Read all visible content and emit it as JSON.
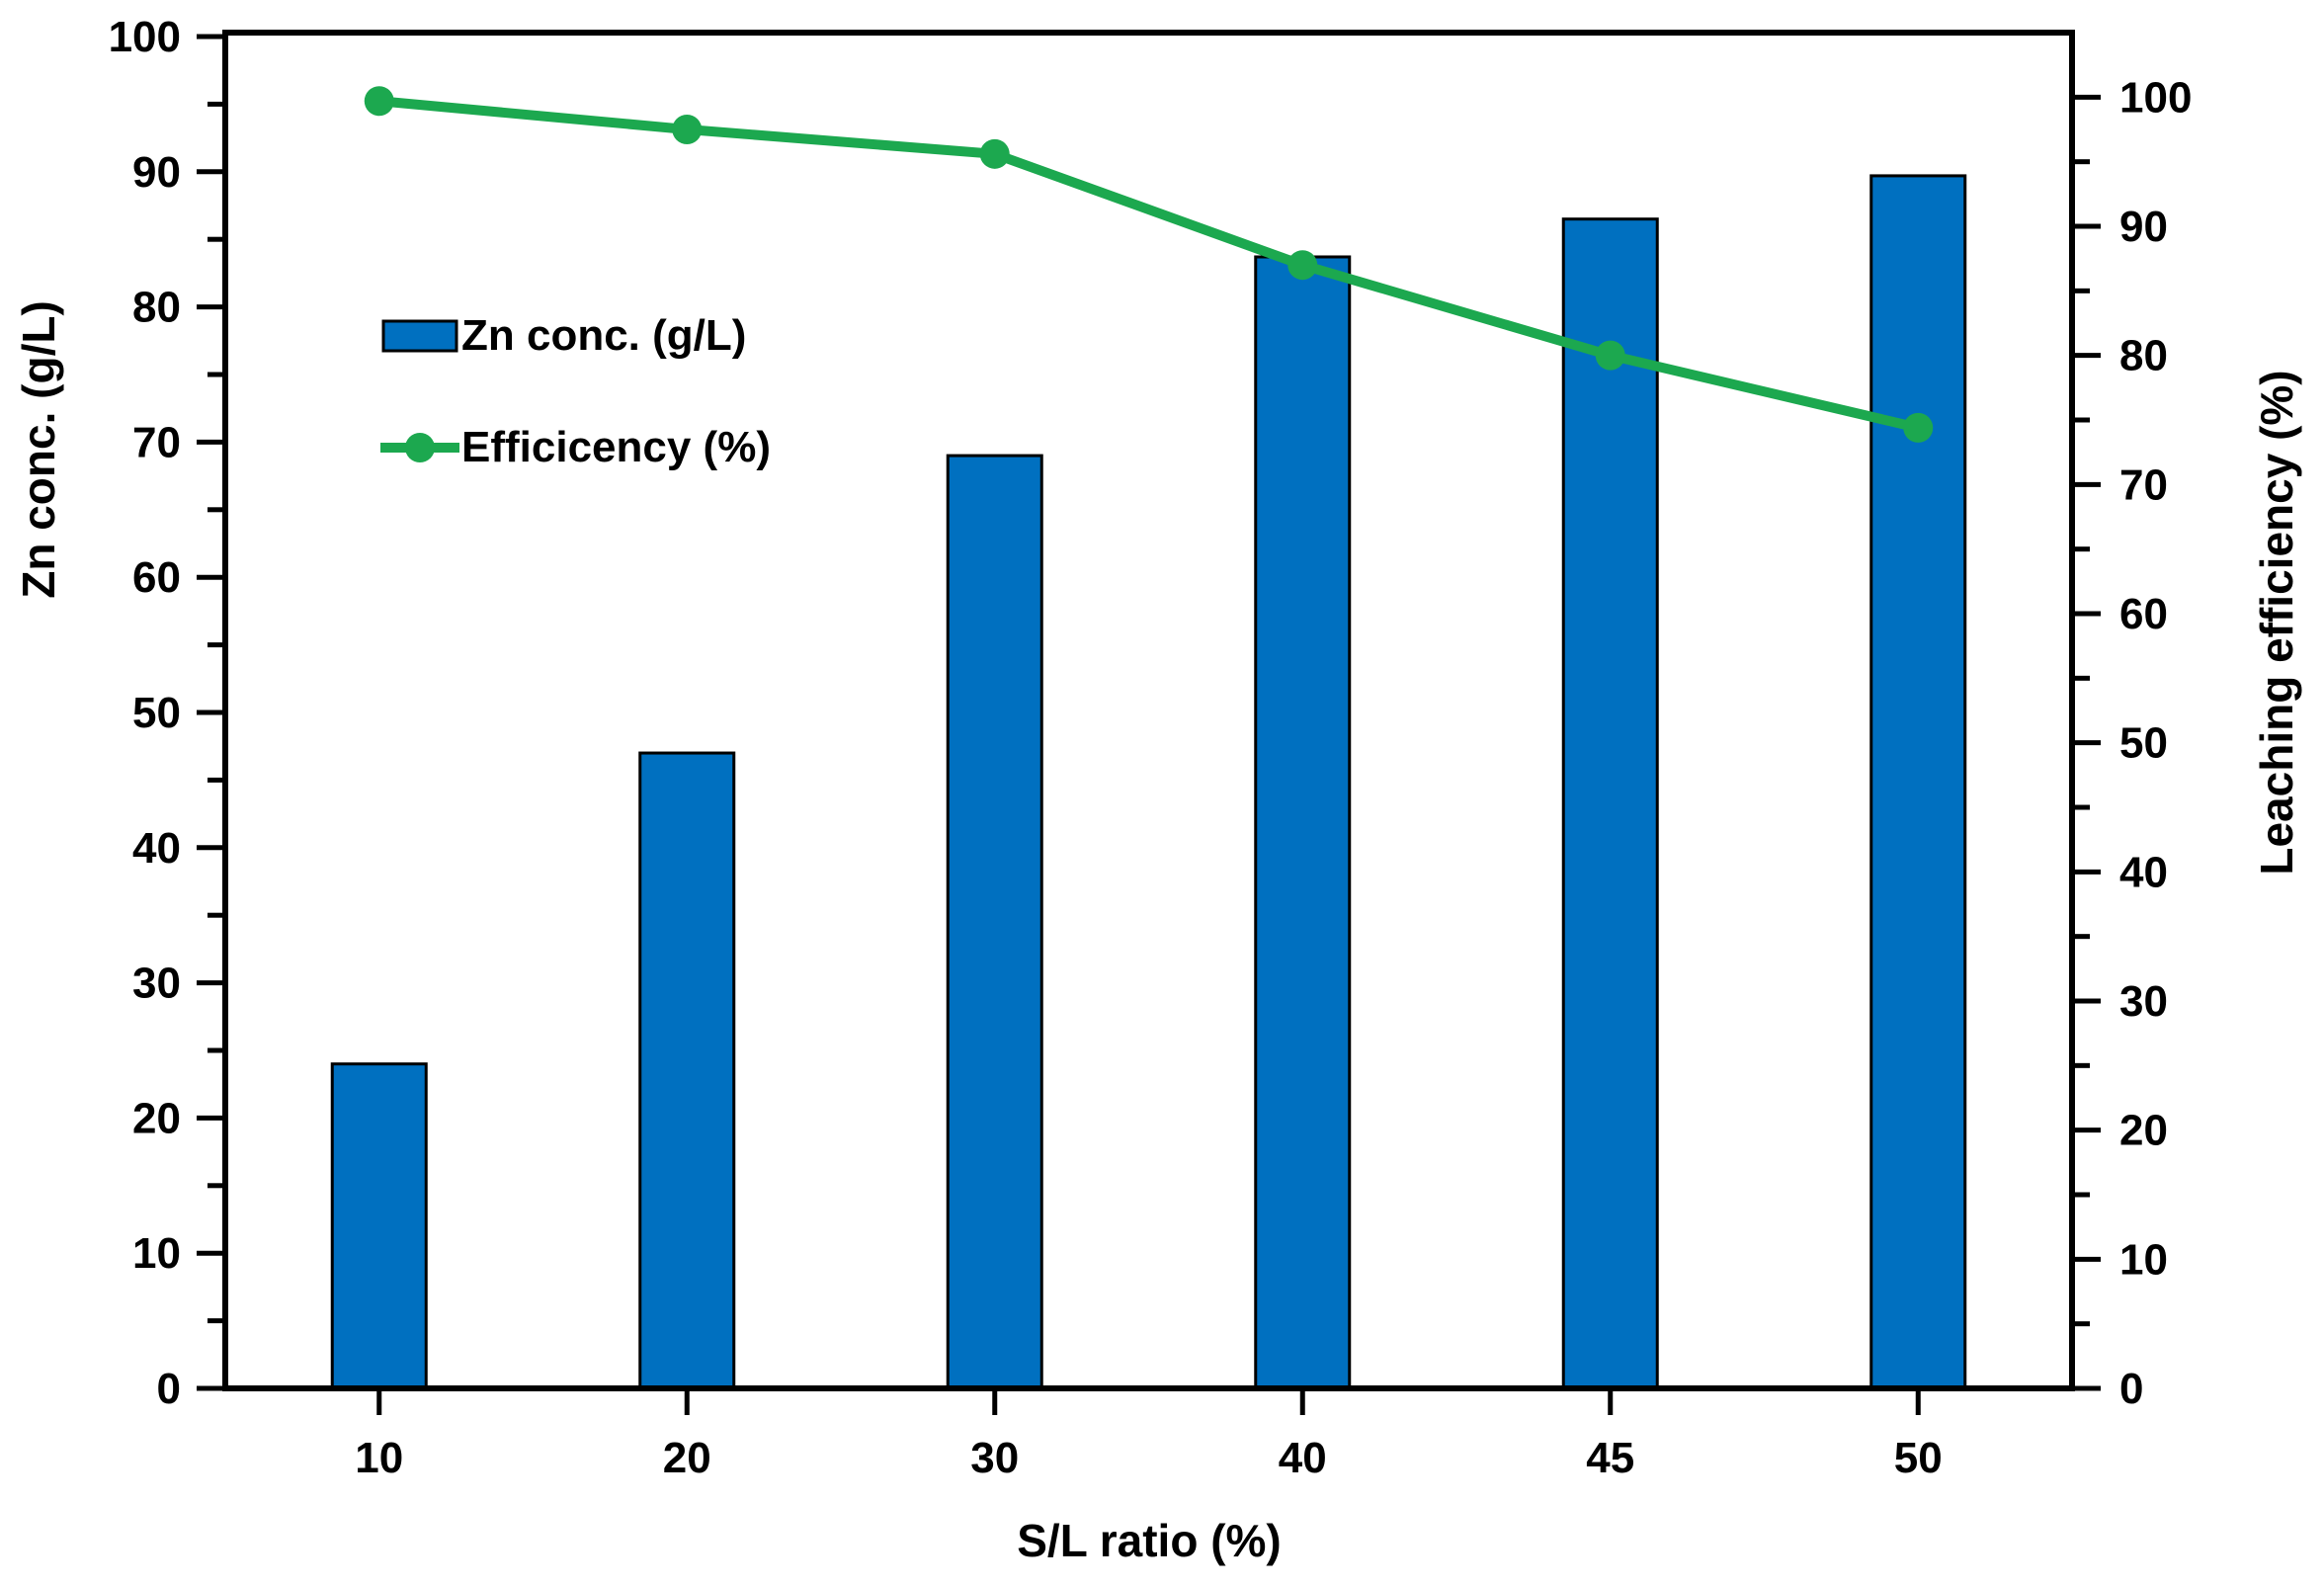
{
  "chart_data": {
    "type": "bar",
    "subtype": "combo-bar-line-dual-axis",
    "categories": [
      "10",
      "20",
      "30",
      "40",
      "45",
      "50"
    ],
    "series": [
      {
        "name": "Zn conc. (g/L)",
        "type": "bar",
        "axis": "left",
        "color": "#0070C0",
        "outline_color": "#000000",
        "values": [
          24,
          47,
          69,
          83.7,
          86.5,
          89.7
        ]
      },
      {
        "name": "Efficicency (%)",
        "type": "line",
        "axis": "right",
        "color": "#1CA84F",
        "marker": "circle",
        "values": [
          99.7,
          97.5,
          95.6,
          87,
          80,
          74.4
        ]
      }
    ],
    "title": "",
    "xlabel": "S/L ratio (%)",
    "ylabel_left": "Zn conc. (g/L)",
    "ylabel_right": "Leaching efficiency (%)",
    "left_axis": {
      "min": 0,
      "max": 100,
      "major_step": 10,
      "minor_step": 5,
      "tick_labels": [
        "0",
        "10",
        "20",
        "30",
        "40",
        "50",
        "60",
        "70",
        "80",
        "90",
        "100"
      ]
    },
    "right_axis": {
      "min": 0,
      "max": 105,
      "major_step": 10,
      "minor_step": 5,
      "tick_labels": [
        "0",
        "10",
        "20",
        "30",
        "40",
        "50",
        "60",
        "70",
        "80",
        "90",
        "100"
      ]
    },
    "grid": false,
    "legend": {
      "position": "inside-upper-left",
      "items": [
        "Zn conc. (g/L)",
        "Efficicency (%)"
      ]
    },
    "frame_color": "#000000",
    "background": "#ffffff"
  }
}
